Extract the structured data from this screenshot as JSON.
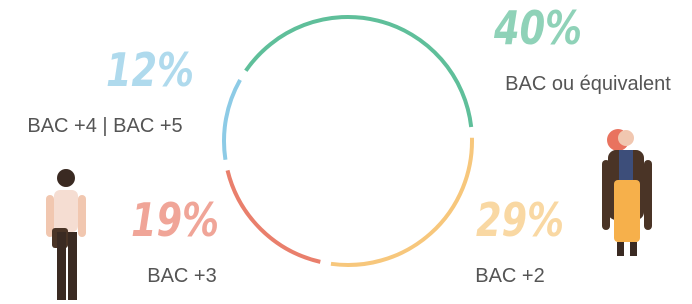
{
  "chart_data": {
    "type": "pie",
    "categories": [
      "BAC ou équivalent",
      "BAC +2",
      "BAC +3",
      "BAC +4 | BAC +5"
    ],
    "values": [
      40,
      29,
      19,
      12
    ],
    "value_labels": [
      "40%",
      "29%",
      "19%",
      "12%"
    ],
    "colors": [
      "#5fbf9a",
      "#f7c77c",
      "#e97f6c",
      "#8dcbe6"
    ]
  }
}
